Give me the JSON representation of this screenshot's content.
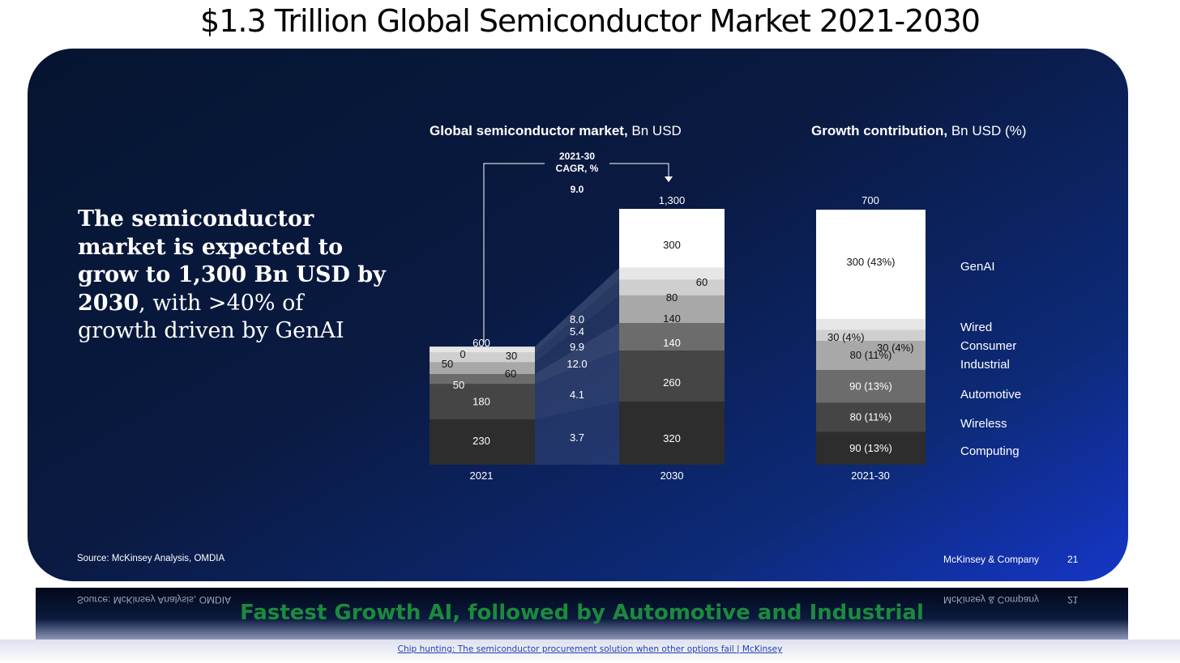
{
  "page": {
    "title": "$1.3 Trillion Global Semiconductor Market 2021-2030",
    "caption": "Fastest Growth AI, followed by Automotive and Industrial",
    "link_text": "Chip hunting: The semiconductor procurement solution when other options fail | McKinsey"
  },
  "slide": {
    "headline_bold": "The semiconductor market is expected to grow to 1,300 Bn USD by 2030",
    "headline_rest": ", with >40% of growth driven by GenAI",
    "source": "Source: McKinsey Analysis, OMDIA",
    "brand": "McKinsey & Company",
    "page_number": "21"
  },
  "chart_data": [
    {
      "type": "bar",
      "stacked": true,
      "title_bold": "Global semiconductor market,",
      "title_rest": " Bn USD",
      "categories": [
        "2021",
        "2030"
      ],
      "totals": [
        "600",
        "1,300"
      ],
      "series": [
        {
          "name": "Computing",
          "values": [
            230,
            320
          ],
          "cagr": "3.7"
        },
        {
          "name": "Wireless",
          "values": [
            180,
            260
          ],
          "cagr": "4.1"
        },
        {
          "name": "Automotive",
          "values": [
            50,
            140
          ],
          "cagr": "12.0"
        },
        {
          "name": "Industrial",
          "values": [
            60,
            140
          ],
          "cagr": "9.9"
        },
        {
          "name": "Consumer",
          "values": [
            50,
            80
          ],
          "cagr": "5.4"
        },
        {
          "name": "Wired",
          "values": [
            30,
            60
          ],
          "cagr": "8.0"
        },
        {
          "name": "GenAI",
          "values": [
            0,
            300
          ],
          "cagr": ""
        }
      ],
      "cagr_label": "2021-30\nCAGR, %",
      "cagr_total": "9.0",
      "colors": [
        "#2d2d2d",
        "#454545",
        "#6c6c6c",
        "#a8a8a8",
        "#cfcfcf",
        "#e6e6e6",
        "#ffffff"
      ]
    },
    {
      "type": "bar",
      "stacked": true,
      "title_bold": "Growth contribution,",
      "title_rest": " Bn USD (%)",
      "categories": [
        "2021-30"
      ],
      "total": "700",
      "segments": [
        {
          "name": "Computing",
          "value": 90,
          "label": "90 (13%)"
        },
        {
          "name": "Wireless",
          "value": 80,
          "label": "80 (11%)"
        },
        {
          "name": "Automotive",
          "value": 90,
          "label": "90 (13%)"
        },
        {
          "name": "Industrial",
          "value": 80,
          "label": "80 (11%)"
        },
        {
          "name": "Consumer",
          "value": 30,
          "label": "30 (4%)"
        },
        {
          "name": "Wired",
          "value": 30,
          "label": "30 (4%)"
        },
        {
          "name": "GenAI",
          "value": 300,
          "label": "300 (43%)"
        }
      ],
      "legend": [
        "GenAI",
        "Wired",
        "Consumer",
        "Industrial",
        "Automotive",
        "Wireless",
        "Computing"
      ]
    }
  ]
}
